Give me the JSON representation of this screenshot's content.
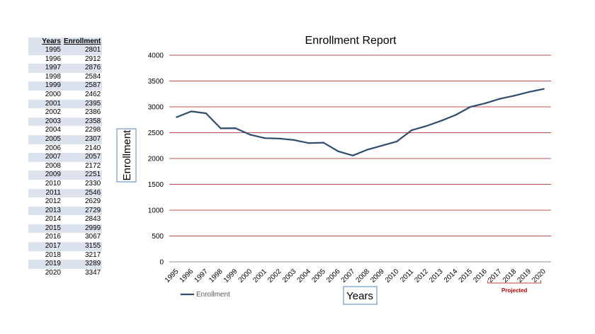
{
  "table": {
    "headers": [
      "Years",
      "Enrollment"
    ]
  },
  "chart_data": {
    "type": "line",
    "title": "Enrollment Report",
    "xlabel": "Years",
    "ylabel": "Enrollment",
    "ylim": [
      0,
      4000
    ],
    "yticks": [
      0,
      500,
      1000,
      1500,
      2000,
      2500,
      3000,
      3500,
      4000
    ],
    "grid": true,
    "categories": [
      "1995",
      "1996",
      "1997",
      "1998",
      "1999",
      "2000",
      "2001",
      "2002",
      "2003",
      "2004",
      "2005",
      "2006",
      "2007",
      "2008",
      "2009",
      "2010",
      "2011",
      "2012",
      "2013",
      "2014",
      "2015",
      "2016",
      "2017",
      "2018",
      "2019",
      "2020"
    ],
    "series": [
      {
        "name": "Enrollment",
        "color": "#2f4b6e",
        "values": [
          2801,
          2912,
          2876,
          2584,
          2587,
          2462,
          2395,
          2386,
          2358,
          2298,
          2307,
          2140,
          2057,
          2172,
          2251,
          2330,
          2546,
          2629,
          2729,
          2843,
          2999,
          3067,
          3155,
          3217,
          3289,
          3347
        ]
      }
    ],
    "legend_position": "bottom-left",
    "annotations": [
      {
        "text": "Projected",
        "color": "#c00000",
        "from": "2016",
        "to": "2020"
      }
    ],
    "gridline_color": "#c0504d"
  }
}
